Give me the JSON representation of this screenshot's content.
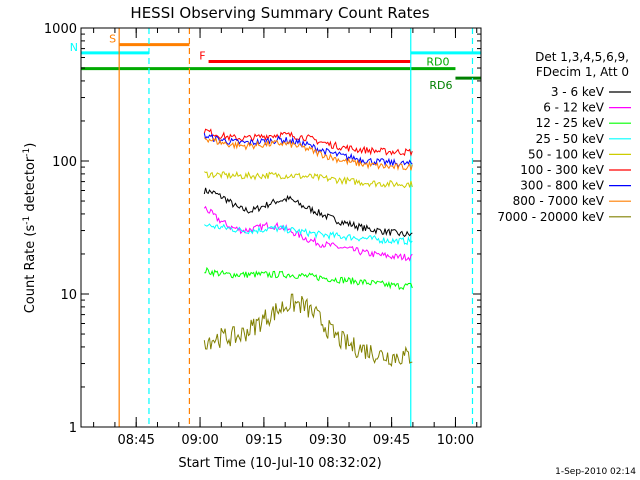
{
  "chart_data": {
    "type": "line",
    "title": "HESSI Observing Summary Count Rates",
    "xlabel": "Start Time (10-Jul-10 08:32:02)",
    "ylabel": "Count Rate (s⁻¹ detector⁻¹)",
    "ylabel_parts": {
      "prefix": "Count Rate (s",
      "sup1": "-1",
      "mid": " detector",
      "sup2": "-1",
      "suffix": ")"
    },
    "y_scale": "log",
    "ylim": [
      1,
      1000
    ],
    "yticks": [
      {
        "value": 1,
        "label": "1"
      },
      {
        "value": 10,
        "label": "10"
      },
      {
        "value": 100,
        "label": "100"
      },
      {
        "value": 1000,
        "label": "1000"
      }
    ],
    "xlim": [
      "08:32:02",
      "10:06:00"
    ],
    "xticks": [
      {
        "time": "08:45",
        "label": "08:45"
      },
      {
        "time": "09:00",
        "label": "09:00"
      },
      {
        "time": "09:15",
        "label": "09:15"
      },
      {
        "time": "09:30",
        "label": "09:30"
      },
      {
        "time": "09:45",
        "label": "09:45"
      },
      {
        "time": "10:00",
        "label": "10:00"
      }
    ],
    "grid": false,
    "legend_placement": "right",
    "legend_header": [
      "Det 1,3,4,5,6,9,",
      "FDecim 1, Att 0"
    ],
    "timestamp": "1-Sep-2010 02:14",
    "flags": [
      {
        "name": "S",
        "label": "S",
        "color": "#ff7f00",
        "start": "08:41:00",
        "end": "08:57:30",
        "level": 750
      },
      {
        "name": "N",
        "label": "N",
        "color": "#00ffff",
        "start": "08:32:02",
        "end": "08:48:00",
        "level": 650
      },
      {
        "name": "F",
        "label": "F",
        "color": "#ff0000",
        "start": "09:02:00",
        "end": "09:49:30",
        "level": 560
      },
      {
        "name": "RD0",
        "label": "RD0",
        "color": "#00aa00",
        "start": "08:32:02",
        "end": "10:00:00",
        "level": 495
      },
      {
        "name": "RD6",
        "label": "RD6",
        "color": "#008000",
        "start": "10:00:00",
        "end": "10:06:00",
        "level": 420
      },
      {
        "name": "N-end",
        "label": "",
        "color": "#00ffff",
        "start": "09:49:30",
        "end": "10:06:00",
        "level": 650
      }
    ],
    "vlines": [
      {
        "time": "08:41:00",
        "color": "#ff7f00",
        "style": "solid"
      },
      {
        "time": "08:48:00",
        "color": "#00ffff",
        "style": "dashed"
      },
      {
        "time": "08:57:30",
        "color": "#ff7f00",
        "style": "dashed"
      },
      {
        "time": "09:49:30",
        "color": "#00ffff",
        "style": "solid"
      },
      {
        "time": "10:04:00",
        "color": "#00ffff",
        "style": "dashed"
      }
    ],
    "series": [
      {
        "name": "3 - 6 keV",
        "color": "#000000",
        "points": [
          [
            "09:01",
            60
          ],
          [
            "09:03",
            58
          ],
          [
            "09:06",
            52
          ],
          [
            "09:09",
            44
          ],
          [
            "09:12",
            42
          ],
          [
            "09:15",
            46
          ],
          [
            "09:18",
            50
          ],
          [
            "09:21",
            52
          ],
          [
            "09:24",
            46
          ],
          [
            "09:27",
            42
          ],
          [
            "09:30",
            38
          ],
          [
            "09:33",
            35
          ],
          [
            "09:36",
            33
          ],
          [
            "09:39",
            31
          ],
          [
            "09:42",
            30
          ],
          [
            "09:45",
            29
          ],
          [
            "09:48",
            28
          ],
          [
            "09:50",
            28
          ]
        ]
      },
      {
        "name": "6 - 12 keV",
        "color": "#ff00ff",
        "points": [
          [
            "09:01",
            45
          ],
          [
            "09:04",
            37
          ],
          [
            "09:07",
            32
          ],
          [
            "09:10",
            30
          ],
          [
            "09:13",
            31
          ],
          [
            "09:16",
            33
          ],
          [
            "09:19",
            32
          ],
          [
            "09:22",
            29
          ],
          [
            "09:25",
            26
          ],
          [
            "09:28",
            24
          ],
          [
            "09:31",
            23
          ],
          [
            "09:34",
            22
          ],
          [
            "09:37",
            21
          ],
          [
            "09:40",
            20
          ],
          [
            "09:43",
            19.5
          ],
          [
            "09:46",
            19
          ],
          [
            "09:50",
            19
          ]
        ]
      },
      {
        "name": "12 - 25 keV",
        "color": "#00ff00",
        "points": [
          [
            "09:01",
            15
          ],
          [
            "09:06",
            14
          ],
          [
            "09:11",
            14
          ],
          [
            "09:16",
            14
          ],
          [
            "09:21",
            14
          ],
          [
            "09:26",
            13.5
          ],
          [
            "09:31",
            13
          ],
          [
            "09:36",
            12.5
          ],
          [
            "09:41",
            12
          ],
          [
            "09:46",
            11.5
          ],
          [
            "09:50",
            11.5
          ]
        ]
      },
      {
        "name": "25 - 50 keV",
        "color": "#00ffff",
        "points": [
          [
            "09:01",
            33
          ],
          [
            "09:04",
            32
          ],
          [
            "09:07",
            31
          ],
          [
            "09:10",
            30
          ],
          [
            "09:13",
            30
          ],
          [
            "09:16",
            31
          ],
          [
            "09:19",
            31
          ],
          [
            "09:22",
            30
          ],
          [
            "09:25",
            29
          ],
          [
            "09:28",
            28
          ],
          [
            "09:31",
            27.5
          ],
          [
            "09:34",
            27
          ],
          [
            "09:37",
            26.5
          ],
          [
            "09:40",
            26
          ],
          [
            "09:43",
            25.5
          ],
          [
            "09:46",
            25
          ],
          [
            "09:50",
            25
          ]
        ]
      },
      {
        "name": "50 - 100 keV",
        "color": "#cccc00",
        "points": [
          [
            "09:01",
            80
          ],
          [
            "09:06",
            78
          ],
          [
            "09:11",
            77
          ],
          [
            "09:16",
            78
          ],
          [
            "09:21",
            78
          ],
          [
            "09:26",
            76
          ],
          [
            "09:31",
            73
          ],
          [
            "09:36",
            70
          ],
          [
            "09:41",
            68
          ],
          [
            "09:46",
            67
          ],
          [
            "09:50",
            67
          ]
        ]
      },
      {
        "name": "100 - 300 keV",
        "color": "#ff0000",
        "points": [
          [
            "09:01",
            170
          ],
          [
            "09:04",
            158
          ],
          [
            "09:07",
            150
          ],
          [
            "09:10",
            148
          ],
          [
            "09:13",
            150
          ],
          [
            "09:16",
            155
          ],
          [
            "09:19",
            158
          ],
          [
            "09:22",
            155
          ],
          [
            "09:25",
            150
          ],
          [
            "09:28",
            140
          ],
          [
            "09:31",
            132
          ],
          [
            "09:34",
            126
          ],
          [
            "09:37",
            122
          ],
          [
            "09:40",
            120
          ],
          [
            "09:43",
            118
          ],
          [
            "09:46",
            117
          ],
          [
            "09:50",
            117
          ]
        ]
      },
      {
        "name": "300 - 800 keV",
        "color": "#0000ff",
        "points": [
          [
            "09:01",
            155
          ],
          [
            "09:04",
            146
          ],
          [
            "09:07",
            140
          ],
          [
            "09:10",
            137
          ],
          [
            "09:13",
            138
          ],
          [
            "09:16",
            142
          ],
          [
            "09:19",
            145
          ],
          [
            "09:22",
            140
          ],
          [
            "09:25",
            133
          ],
          [
            "09:28",
            122
          ],
          [
            "09:31",
            114
          ],
          [
            "09:34",
            108
          ],
          [
            "09:37",
            104
          ],
          [
            "09:40",
            100
          ],
          [
            "09:43",
            98
          ],
          [
            "09:46",
            96
          ],
          [
            "09:50",
            95
          ]
        ]
      },
      {
        "name": "800 - 7000 keV",
        "color": "#ff7f00",
        "points": [
          [
            "09:01",
            150
          ],
          [
            "09:04",
            140
          ],
          [
            "09:07",
            133
          ],
          [
            "09:10",
            130
          ],
          [
            "09:13",
            131
          ],
          [
            "09:16",
            134
          ],
          [
            "09:19",
            136
          ],
          [
            "09:22",
            132
          ],
          [
            "09:25",
            124
          ],
          [
            "09:28",
            114
          ],
          [
            "09:31",
            106
          ],
          [
            "09:34",
            100
          ],
          [
            "09:37",
            96
          ],
          [
            "09:40",
            93
          ],
          [
            "09:43",
            91
          ],
          [
            "09:46",
            90
          ],
          [
            "09:50",
            90
          ]
        ]
      },
      {
        "name": "7000 - 20000 keV",
        "color": "#808000",
        "points": [
          [
            "09:01",
            4.5
          ],
          [
            "09:05",
            4.7
          ],
          [
            "09:09",
            4.8
          ],
          [
            "09:12",
            5.5
          ],
          [
            "09:15",
            6.5
          ],
          [
            "09:18",
            7.5
          ],
          [
            "09:21",
            8.5
          ],
          [
            "09:24",
            8.3
          ],
          [
            "09:27",
            7
          ],
          [
            "09:30",
            5.5
          ],
          [
            "09:33",
            4.5
          ],
          [
            "09:36",
            4
          ],
          [
            "09:39",
            3.8
          ],
          [
            "09:42",
            3.5
          ],
          [
            "09:45",
            3.4
          ],
          [
            "09:48",
            3.4
          ],
          [
            "09:50",
            3.4
          ]
        ]
      }
    ]
  }
}
